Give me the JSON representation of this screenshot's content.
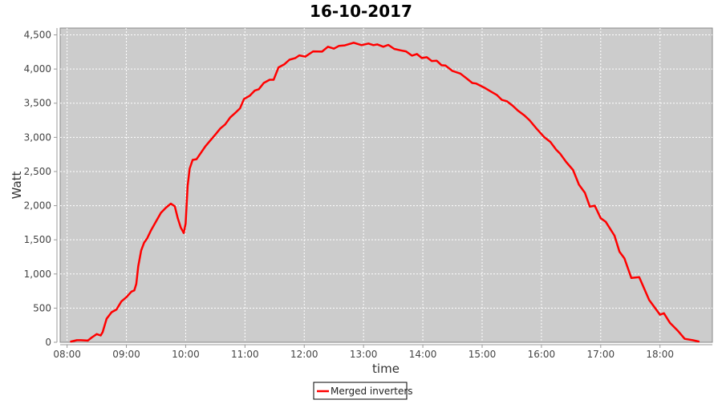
{
  "chart_data": {
    "type": "line",
    "title": "16-10-2017",
    "xlabel": "time",
    "ylabel": "Watt",
    "xlim": [
      "07:53",
      "18:53"
    ],
    "ylim": [
      0,
      4600
    ],
    "grid": true,
    "legend_position": "bottom",
    "background_color": "#cccccc",
    "x_ticks": [
      "08:00",
      "09:00",
      "10:00",
      "11:00",
      "12:00",
      "13:00",
      "14:00",
      "15:00",
      "16:00",
      "17:00",
      "18:00"
    ],
    "y_ticks": [
      {
        "value": 0,
        "label": "0"
      },
      {
        "value": 500,
        "label": "500"
      },
      {
        "value": 1000,
        "label": "1,000"
      },
      {
        "value": 1500,
        "label": "1,500"
      },
      {
        "value": 2000,
        "label": "2,000"
      },
      {
        "value": 2500,
        "label": "2,500"
      },
      {
        "value": 3000,
        "label": "3,000"
      },
      {
        "value": 3500,
        "label": "3,500"
      },
      {
        "value": 4000,
        "label": "4,000"
      },
      {
        "value": 4500,
        "label": "4,500"
      }
    ],
    "series": [
      {
        "name": "Merged inverters",
        "color": "#ff0000",
        "x": [
          "08:04",
          "08:10",
          "08:14",
          "08:21",
          "08:25",
          "08:30",
          "08:34",
          "08:36",
          "08:40",
          "08:45",
          "08:50",
          "08:55",
          "09:00",
          "09:05",
          "09:08",
          "09:10",
          "09:12",
          "09:15",
          "09:18",
          "09:21",
          "09:25",
          "09:30",
          "09:35",
          "09:40",
          "09:45",
          "09:49",
          "09:52",
          "09:55",
          "09:58",
          "10:00",
          "10:02",
          "10:04",
          "10:07",
          "10:11",
          "10:15",
          "10:20",
          "10:25",
          "10:30",
          "10:35",
          "10:40",
          "10:45",
          "10:50",
          "10:55",
          "10:59",
          "11:05",
          "11:10",
          "11:14",
          "11:19",
          "11:25",
          "11:29",
          "11:34",
          "11:40",
          "11:45",
          "11:51",
          "11:55",
          "12:01",
          "12:05",
          "12:09",
          "12:18",
          "12:24",
          "12:30",
          "12:35",
          "12:41",
          "12:50",
          "12:58",
          "13:05",
          "13:10",
          "13:14",
          "13:20",
          "13:25",
          "13:31",
          "13:37",
          "13:43",
          "13:49",
          "13:54",
          "13:59",
          "14:04",
          "14:09",
          "14:14",
          "14:19",
          "14:23",
          "14:30",
          "14:38",
          "14:45",
          "14:50",
          "14:54",
          "15:02",
          "15:09",
          "15:15",
          "15:20",
          "15:25",
          "15:31",
          "15:36",
          "15:43",
          "15:48",
          "15:55",
          "16:03",
          "16:09",
          "16:15",
          "16:19",
          "16:25",
          "16:32",
          "16:38",
          "16:44",
          "16:49",
          "16:54",
          "17:00",
          "17:05",
          "17:14",
          "17:19",
          "17:24",
          "17:31",
          "17:39",
          "17:49",
          "18:00",
          "18:04",
          "18:10",
          "18:18",
          "18:25",
          "18:33",
          "18:39"
        ],
        "values": [
          10,
          30,
          30,
          25,
          70,
          120,
          100,
          150,
          345,
          440,
          480,
          600,
          660,
          740,
          760,
          855,
          1110,
          1345,
          1460,
          1520,
          1640,
          1770,
          1895,
          1970,
          2030,
          1990,
          1815,
          1680,
          1600,
          1740,
          2290,
          2540,
          2670,
          2680,
          2765,
          2870,
          2955,
          3040,
          3130,
          3190,
          3290,
          3355,
          3425,
          3560,
          3611,
          3686,
          3705,
          3796,
          3843,
          3843,
          4024,
          4071,
          4137,
          4161,
          4200,
          4181,
          4220,
          4259,
          4255,
          4326,
          4299,
          4338,
          4346,
          4385,
          4350,
          4373,
          4350,
          4361,
          4326,
          4354,
          4295,
          4275,
          4259,
          4196,
          4220,
          4161,
          4173,
          4118,
          4122,
          4055,
          4051,
          3972,
          3933,
          3855,
          3796,
          3788,
          3729,
          3670,
          3619,
          3548,
          3529,
          3462,
          3395,
          3317,
          3250,
          3130,
          3000,
          2934,
          2817,
          2760,
          2640,
          2523,
          2307,
          2189,
          1985,
          2000,
          1816,
          1765,
          1561,
          1326,
          1228,
          941,
          953,
          620,
          404,
          425,
          286,
          169,
          51,
          30,
          12
        ]
      }
    ]
  }
}
